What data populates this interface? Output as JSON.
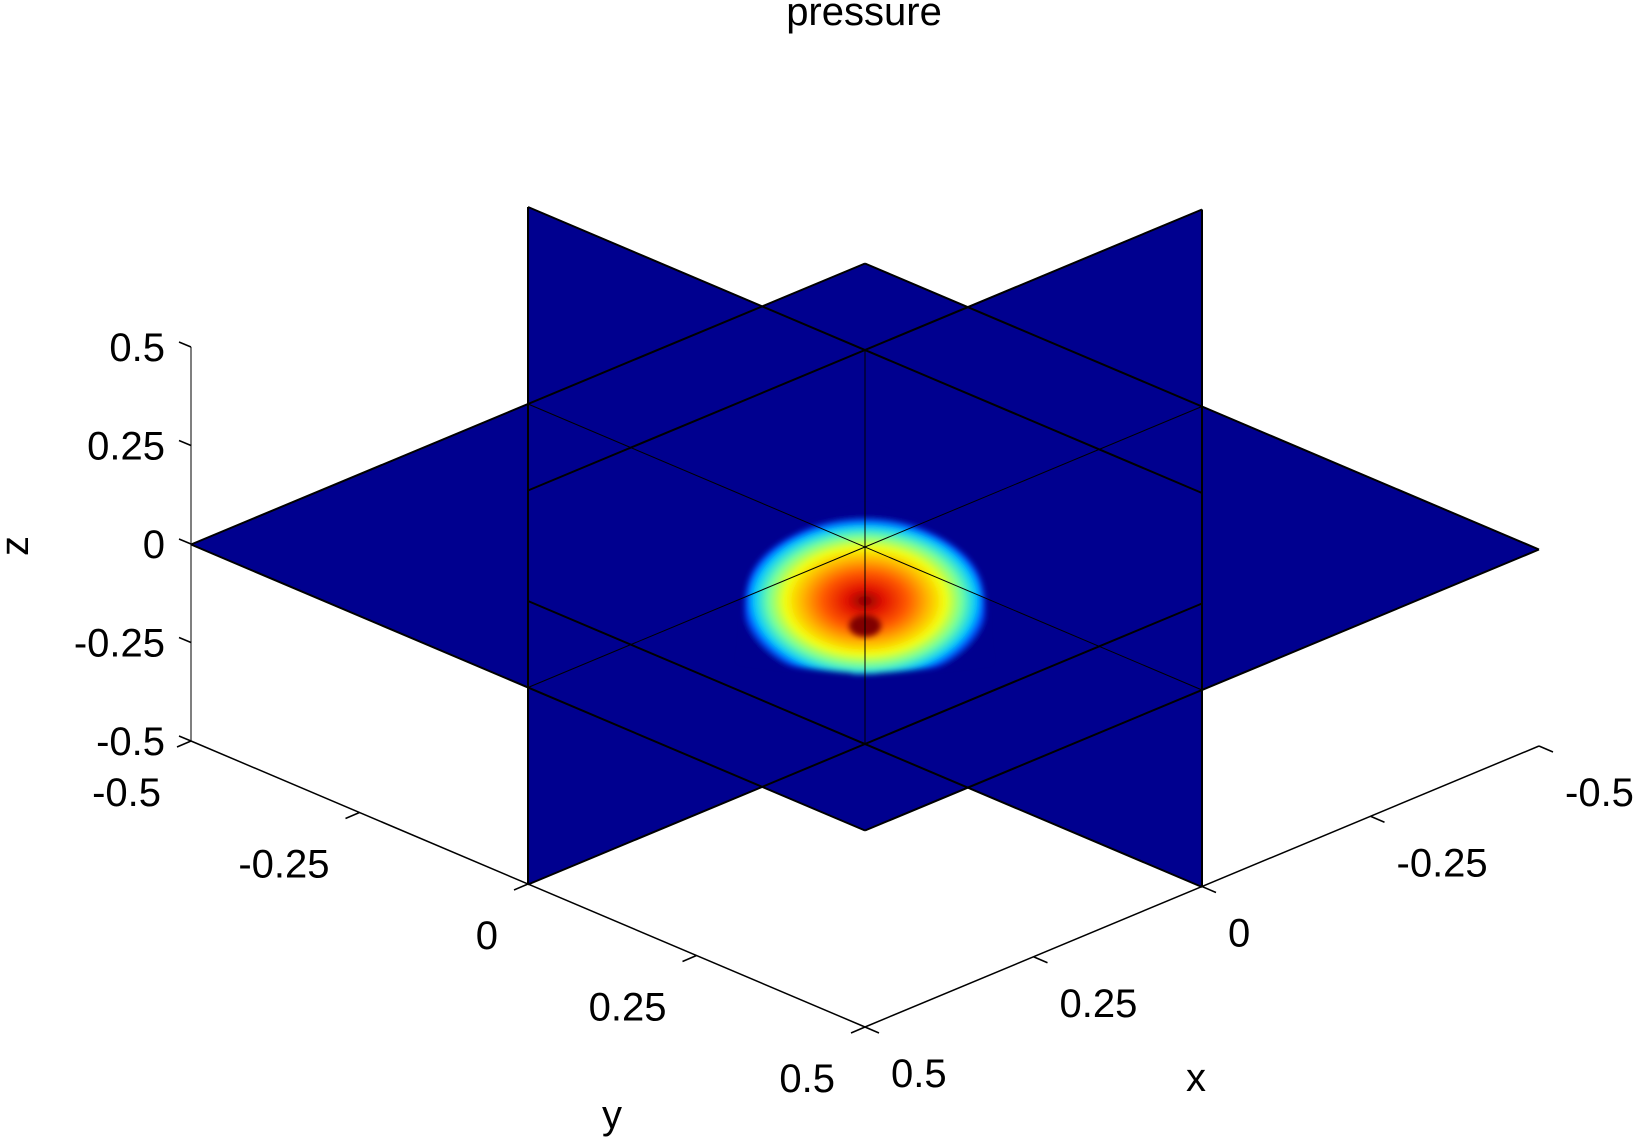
{
  "chart_data": {
    "type": "heatmap",
    "subtype": "3d-orthogonal-slices",
    "title": "pressure",
    "xlabel": "x",
    "ylabel": "y",
    "zlabel": "z",
    "xlim": [
      -0.5,
      0.5
    ],
    "ylim": [
      -0.5,
      0.5
    ],
    "zlim": [
      -0.5,
      0.5
    ],
    "x_ticks": [
      -0.5,
      -0.25,
      0,
      0.25,
      0.5
    ],
    "y_ticks": [
      -0.5,
      -0.25,
      0,
      0.25,
      0.5
    ],
    "z_ticks": [
      -0.5,
      -0.25,
      0,
      0.25,
      0.5
    ],
    "x_tick_labels": [
      "-0.5",
      "-0.25",
      "0",
      "0.25",
      "0.5"
    ],
    "y_tick_labels": [
      "-0.5",
      "-0.25",
      "0",
      "0.25",
      "0.5"
    ],
    "z_tick_labels": [
      "-0.5",
      "-0.25",
      "0",
      "0.25",
      "0.5"
    ],
    "slices": [
      {
        "plane": "x",
        "value": 0
      },
      {
        "plane": "y",
        "value": 0
      },
      {
        "plane": "z",
        "value": 0
      }
    ],
    "colormap": "jet",
    "background_color": "#00008f",
    "pressure_blob": {
      "center": [
        0,
        0,
        -0.2
      ],
      "extent_x": [
        -0.17,
        0.17
      ],
      "extent_y": [
        -0.17,
        0.17
      ],
      "extent_z": [
        -0.3,
        0.1
      ],
      "peak_color": "#800000"
    },
    "grid": false,
    "view": "3d-isometric"
  }
}
